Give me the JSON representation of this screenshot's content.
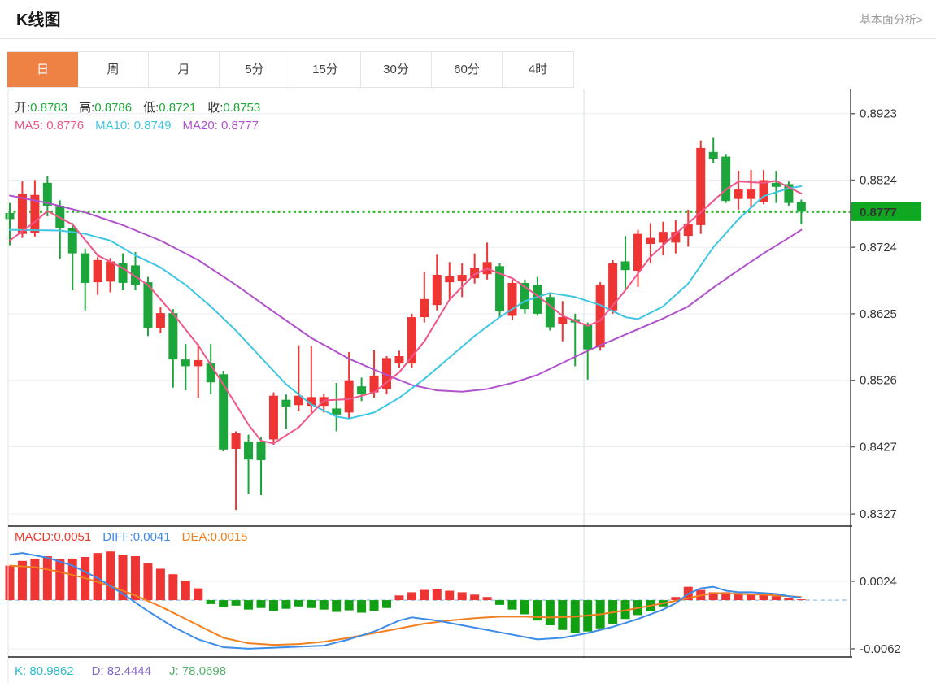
{
  "page": {
    "title": "K线图",
    "link_label": "基本面分析>"
  },
  "tabs": {
    "items": [
      "日",
      "周",
      "月",
      "5分",
      "15分",
      "30分",
      "60分",
      "4时"
    ],
    "active": "日"
  },
  "legend": {
    "ohlc": [
      {
        "label": "开:",
        "value": "0.8783"
      },
      {
        "label": "高:",
        "value": "0.8786"
      },
      {
        "label": "低:",
        "value": "0.8721"
      },
      {
        "label": "收:",
        "value": "0.8753"
      }
    ],
    "ma": [
      {
        "label": "MA5:",
        "value": "0.8776"
      },
      {
        "label": "MA10:",
        "value": "0.8749"
      },
      {
        "label": "MA20:",
        "value": "0.8777"
      }
    ],
    "macd": [
      {
        "label": "MACD:",
        "value": "0.0051"
      },
      {
        "label": "DIFF:",
        "value": "0.0041"
      },
      {
        "label": "DEA:",
        "value": "0.0015"
      }
    ],
    "kdj": [
      {
        "label": "K:",
        "value": "80.9862"
      },
      {
        "label": "D:",
        "value": "82.4444"
      },
      {
        "label": "J:",
        "value": "78.0698"
      }
    ]
  },
  "price_tag": {
    "value": "0.8777"
  },
  "colors": {
    "up": "#ef3434",
    "down": "#1ca53a",
    "ma5": "#f0568c",
    "ma10": "#3fc6e3",
    "ma20": "#b052cc",
    "macd": "#f03a2e",
    "diff": "#3d8de8",
    "dea": "#f07f1f",
    "k": "#29bcd0",
    "d": "#8266cc",
    "j": "#55b06a",
    "ohlc_value": "#21a73d",
    "tag_bg": "#10a723",
    "tab_active": "#ee8144",
    "dotted_line": "#2eb82e",
    "grid": "#e9eef4",
    "axis_border": "#444444",
    "zero_dash": "#a6cbe9"
  },
  "chart_data": [
    {
      "type": "candlestick",
      "panel": "main",
      "title": "K线图 日K",
      "y_ticks": [
        0.8923,
        0.8824,
        0.8724,
        0.8625,
        0.8526,
        0.8427,
        0.8327
      ],
      "ylim": [
        0.8309,
        0.8959
      ],
      "last_price": 0.8777,
      "v_grid_index": 45.7,
      "candles": [
        [
          0.8775,
          0.879,
          0.8727,
          0.8766
        ],
        [
          0.8744,
          0.8822,
          0.8738,
          0.8804
        ],
        [
          0.8746,
          0.8824,
          0.874,
          0.8802
        ],
        [
          0.882,
          0.883,
          0.877,
          0.8786
        ],
        [
          0.8786,
          0.8794,
          0.8707,
          0.8753
        ],
        [
          0.8753,
          0.876,
          0.866,
          0.8715
        ],
        [
          0.8715,
          0.8722,
          0.863,
          0.8671
        ],
        [
          0.8672,
          0.871,
          0.8653,
          0.8705
        ],
        [
          0.8673,
          0.8708,
          0.8657,
          0.8703
        ],
        [
          0.87,
          0.8715,
          0.866,
          0.8671
        ],
        [
          0.8697,
          0.8717,
          0.866,
          0.8668
        ],
        [
          0.8672,
          0.868,
          0.8592,
          0.8604
        ],
        [
          0.8604,
          0.8635,
          0.8596,
          0.8626
        ],
        [
          0.8626,
          0.8632,
          0.8515,
          0.8557
        ],
        [
          0.8557,
          0.858,
          0.8511,
          0.8547
        ],
        [
          0.8547,
          0.858,
          0.85,
          0.8556
        ],
        [
          0.8551,
          0.858,
          0.8505,
          0.8523
        ],
        [
          0.8535,
          0.854,
          0.842,
          0.8423
        ],
        [
          0.8424,
          0.845,
          0.8333,
          0.8447
        ],
        [
          0.8435,
          0.8445,
          0.8356,
          0.8408
        ],
        [
          0.8435,
          0.8442,
          0.8355,
          0.8407
        ],
        [
          0.8438,
          0.8508,
          0.843,
          0.8503
        ],
        [
          0.8497,
          0.8505,
          0.8453,
          0.8487
        ],
        [
          0.8489,
          0.8578,
          0.848,
          0.8503
        ],
        [
          0.8488,
          0.8577,
          0.8478,
          0.8501
        ],
        [
          0.8488,
          0.8505,
          0.8478,
          0.8501
        ],
        [
          0.8484,
          0.8522,
          0.845,
          0.8475
        ],
        [
          0.8478,
          0.8568,
          0.847,
          0.8526
        ],
        [
          0.8517,
          0.853,
          0.8495,
          0.8505
        ],
        [
          0.8508,
          0.8571,
          0.85,
          0.8533
        ],
        [
          0.8513,
          0.8562,
          0.8505,
          0.8559
        ],
        [
          0.8551,
          0.857,
          0.8545,
          0.8562
        ],
        [
          0.8551,
          0.8625,
          0.8545,
          0.862
        ],
        [
          0.862,
          0.8687,
          0.8612,
          0.8647
        ],
        [
          0.8638,
          0.8713,
          0.863,
          0.8683
        ],
        [
          0.8672,
          0.8702,
          0.8647,
          0.8681
        ],
        [
          0.8674,
          0.87,
          0.865,
          0.8683
        ],
        [
          0.8678,
          0.8715,
          0.867,
          0.8693
        ],
        [
          0.8684,
          0.8731,
          0.8676,
          0.8702
        ],
        [
          0.8696,
          0.87,
          0.862,
          0.8629
        ],
        [
          0.8622,
          0.8676,
          0.8616,
          0.8671
        ],
        [
          0.8671,
          0.8676,
          0.8625,
          0.8632
        ],
        [
          0.8668,
          0.868,
          0.8622,
          0.8625
        ],
        [
          0.865,
          0.8655,
          0.86,
          0.8605
        ],
        [
          0.861,
          0.8644,
          0.8584,
          0.862
        ],
        [
          0.8617,
          0.8625,
          0.8547,
          0.8612
        ],
        [
          0.8608,
          0.8612,
          0.8527,
          0.8572
        ],
        [
          0.8575,
          0.8672,
          0.857,
          0.8668
        ],
        [
          0.863,
          0.8705,
          0.8625,
          0.87
        ],
        [
          0.8703,
          0.8741,
          0.866,
          0.869
        ],
        [
          0.8689,
          0.875,
          0.8665,
          0.8744
        ],
        [
          0.8729,
          0.876,
          0.87,
          0.8738
        ],
        [
          0.8731,
          0.8762,
          0.8712,
          0.8747
        ],
        [
          0.8731,
          0.8764,
          0.8715,
          0.8747
        ],
        [
          0.8741,
          0.878,
          0.8725,
          0.8759
        ],
        [
          0.8757,
          0.8883,
          0.8744,
          0.8872
        ],
        [
          0.8866,
          0.8887,
          0.885,
          0.8856
        ],
        [
          0.8859,
          0.8862,
          0.879,
          0.8793
        ],
        [
          0.8796,
          0.8838,
          0.878,
          0.881
        ],
        [
          0.8796,
          0.8839,
          0.8782,
          0.881
        ],
        [
          0.8792,
          0.8839,
          0.8788,
          0.8824
        ],
        [
          0.882,
          0.8838,
          0.879,
          0.8814
        ],
        [
          0.8818,
          0.8822,
          0.8786,
          0.879
        ],
        [
          0.8792,
          0.8795,
          0.8758,
          0.8777
        ]
      ],
      "ma5_points": [
        [
          0,
          0.8734
        ],
        [
          2,
          0.8762
        ],
        [
          3,
          0.8778
        ],
        [
          5,
          0.8758
        ],
        [
          7,
          0.8712
        ],
        [
          9,
          0.8693
        ],
        [
          11,
          0.8668
        ],
        [
          13,
          0.8625
        ],
        [
          15,
          0.8578
        ],
        [
          17,
          0.852
        ],
        [
          19,
          0.846
        ],
        [
          20,
          0.8436
        ],
        [
          21,
          0.8432
        ],
        [
          23,
          0.8456
        ],
        [
          25,
          0.8496
        ],
        [
          27,
          0.8498
        ],
        [
          29,
          0.8508
        ],
        [
          31,
          0.8538
        ],
        [
          33,
          0.8584
        ],
        [
          35,
          0.8646
        ],
        [
          37,
          0.8684
        ],
        [
          38,
          0.8692
        ],
        [
          40,
          0.8678
        ],
        [
          42,
          0.8652
        ],
        [
          44,
          0.8622
        ],
        [
          46,
          0.8607
        ],
        [
          47,
          0.8615
        ],
        [
          49,
          0.866
        ],
        [
          51,
          0.871
        ],
        [
          53,
          0.8744
        ],
        [
          55,
          0.8776
        ],
        [
          57,
          0.881
        ],
        [
          58,
          0.8822
        ],
        [
          60,
          0.882
        ],
        [
          61,
          0.8823
        ],
        [
          63,
          0.8804
        ]
      ],
      "ma10_points": [
        [
          0,
          0.875
        ],
        [
          4,
          0.8749
        ],
        [
          6,
          0.8744
        ],
        [
          8,
          0.8734
        ],
        [
          10,
          0.8712
        ],
        [
          12,
          0.8694
        ],
        [
          14,
          0.8668
        ],
        [
          16,
          0.8636
        ],
        [
          18,
          0.86
        ],
        [
          20,
          0.856
        ],
        [
          22,
          0.852
        ],
        [
          24,
          0.849
        ],
        [
          26,
          0.8472
        ],
        [
          27,
          0.8469
        ],
        [
          29,
          0.8478
        ],
        [
          31,
          0.85
        ],
        [
          33,
          0.8528
        ],
        [
          35,
          0.856
        ],
        [
          37,
          0.8592
        ],
        [
          39,
          0.862
        ],
        [
          41,
          0.8644
        ],
        [
          43,
          0.8656
        ],
        [
          45,
          0.865
        ],
        [
          47,
          0.8638
        ],
        [
          49,
          0.862
        ],
        [
          50,
          0.8617
        ],
        [
          52,
          0.8636
        ],
        [
          54,
          0.867
        ],
        [
          56,
          0.8724
        ],
        [
          58,
          0.8766
        ],
        [
          60,
          0.88
        ],
        [
          62,
          0.8812
        ],
        [
          63,
          0.8815
        ]
      ],
      "ma20_points": [
        [
          0,
          0.8801
        ],
        [
          3,
          0.879
        ],
        [
          6,
          0.8776
        ],
        [
          9,
          0.8757
        ],
        [
          12,
          0.8734
        ],
        [
          15,
          0.8705
        ],
        [
          18,
          0.8668
        ],
        [
          21,
          0.8628
        ],
        [
          24,
          0.8589
        ],
        [
          27,
          0.8558
        ],
        [
          30,
          0.8534
        ],
        [
          32,
          0.8519
        ],
        [
          34,
          0.8511
        ],
        [
          36,
          0.8509
        ],
        [
          38,
          0.8513
        ],
        [
          40,
          0.8522
        ],
        [
          42,
          0.8534
        ],
        [
          44,
          0.8552
        ],
        [
          46,
          0.857
        ],
        [
          48,
          0.8586
        ],
        [
          50,
          0.8602
        ],
        [
          52,
          0.8618
        ],
        [
          54,
          0.8636
        ],
        [
          56,
          0.8664
        ],
        [
          58,
          0.869
        ],
        [
          60,
          0.8715
        ],
        [
          62,
          0.8738
        ],
        [
          63,
          0.875
        ]
      ]
    },
    {
      "type": "macd",
      "panel": "sub",
      "y_ticks": [
        0.0024,
        -0.0062
      ],
      "ylim": [
        -0.00745,
        0.00933
      ],
      "hist": [
        0.0044,
        0.005,
        0.0053,
        0.0056,
        0.0052,
        0.0053,
        0.0055,
        0.006,
        0.0062,
        0.0058,
        0.0056,
        0.0047,
        0.004,
        0.0033,
        0.0025,
        0.0015,
        -0.0005,
        -0.0009,
        -0.0007,
        -0.0012,
        -0.001,
        -0.0014,
        -0.0011,
        -0.0008,
        -0.001,
        -0.0012,
        -0.0015,
        -0.0013,
        -0.0016,
        -0.0014,
        -0.001,
        0.0006,
        0.001,
        0.0013,
        0.0014,
        0.0012,
        0.001,
        0.0007,
        0.0004,
        -0.0006,
        -0.0012,
        -0.0018,
        -0.0026,
        -0.0032,
        -0.0038,
        -0.0042,
        -0.004,
        -0.0036,
        -0.003,
        -0.0024,
        -0.0019,
        -0.0014,
        -0.0008,
        0.0004,
        0.0017,
        0.0013,
        0.001,
        0.001,
        0.0009,
        0.0008,
        0.0007,
        0.0005,
        0.0003,
        0.0001
      ],
      "diff_points": [
        [
          0,
          0.0058
        ],
        [
          1,
          0.006
        ],
        [
          3,
          0.0054
        ],
        [
          5,
          0.0044
        ],
        [
          7,
          0.0028
        ],
        [
          9,
          0.0008
        ],
        [
          11,
          -0.0014
        ],
        [
          13,
          -0.0034
        ],
        [
          15,
          -0.005
        ],
        [
          17,
          -0.006
        ],
        [
          19,
          -0.0062
        ],
        [
          22,
          -0.006
        ],
        [
          25,
          -0.0058
        ],
        [
          27,
          -0.005
        ],
        [
          29,
          -0.004
        ],
        [
          31,
          -0.0026
        ],
        [
          32,
          -0.0022
        ],
        [
          34,
          -0.0026
        ],
        [
          36,
          -0.0032
        ],
        [
          38,
          -0.0038
        ],
        [
          40,
          -0.0044
        ],
        [
          42,
          -0.005
        ],
        [
          44,
          -0.0048
        ],
        [
          46,
          -0.0042
        ],
        [
          48,
          -0.0034
        ],
        [
          50,
          -0.0024
        ],
        [
          52,
          -0.0012
        ],
        [
          53,
          -0.0004
        ],
        [
          54,
          0.0008
        ],
        [
          55,
          0.0015
        ],
        [
          56,
          0.0017
        ],
        [
          57,
          0.0012
        ],
        [
          58,
          0.001
        ],
        [
          59,
          0.001
        ],
        [
          60,
          0.0009
        ],
        [
          61,
          0.0008
        ],
        [
          62,
          0.0005
        ],
        [
          63,
          0.0003
        ]
      ],
      "dea_points": [
        [
          0,
          0.0044
        ],
        [
          2,
          0.0042
        ],
        [
          4,
          0.0036
        ],
        [
          6,
          0.0028
        ],
        [
          8,
          0.0018
        ],
        [
          10,
          0.0006
        ],
        [
          12,
          -0.0008
        ],
        [
          14,
          -0.0024
        ],
        [
          16,
          -0.004
        ],
        [
          17,
          -0.0048
        ],
        [
          19,
          -0.0055
        ],
        [
          21,
          -0.0057
        ],
        [
          23,
          -0.0056
        ],
        [
          25,
          -0.0053
        ],
        [
          27,
          -0.0048
        ],
        [
          29,
          -0.0042
        ],
        [
          31,
          -0.0036
        ],
        [
          33,
          -0.003
        ],
        [
          35,
          -0.0026
        ],
        [
          37,
          -0.0023
        ],
        [
          39,
          -0.0021
        ],
        [
          41,
          -0.0021
        ],
        [
          43,
          -0.0022
        ],
        [
          45,
          -0.0021
        ],
        [
          47,
          -0.0018
        ],
        [
          49,
          -0.0013
        ],
        [
          51,
          -0.0007
        ],
        [
          53,
          -0.0001
        ],
        [
          55,
          0.0006
        ],
        [
          56,
          0.0009
        ],
        [
          58,
          0.0008
        ],
        [
          60,
          0.0007
        ],
        [
          62,
          0.0005
        ],
        [
          63,
          0.0004
        ]
      ]
    }
  ]
}
